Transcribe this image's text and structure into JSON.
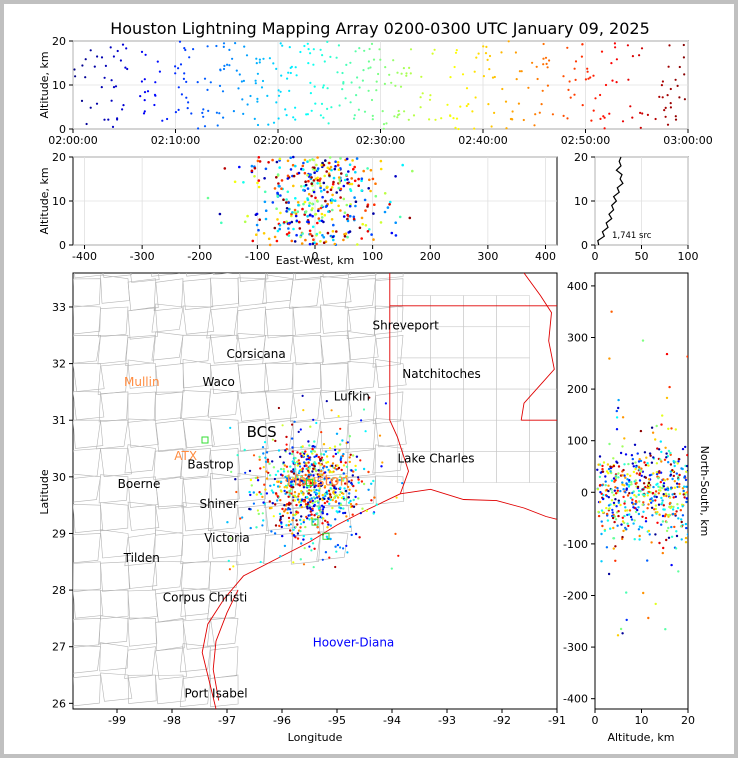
{
  "title": "Houston Lightning Mapping Array 0200-0300 UTC January 09, 2025",
  "source_count_label": "1,741 src",
  "chart_data": [
    {
      "panel": "time-altitude",
      "type": "scatter",
      "ylabel": "Altitude, km",
      "xlim": [
        "02:00:00",
        "03:00:00"
      ],
      "ylim": [
        0,
        20
      ],
      "x_ticks": [
        "02:00:00",
        "02:10:00",
        "02:20:00",
        "02:30:00",
        "02:40:00",
        "02:50:00",
        "03:00:00"
      ],
      "y_ticks": [
        0,
        10,
        20
      ],
      "color_encoding": "time (blue→red)",
      "grid": true,
      "density_profile": [
        {
          "minute_start": 0,
          "count": 55
        },
        {
          "minute_start": 10,
          "count": 80
        },
        {
          "minute_start": 20,
          "count": 90
        },
        {
          "minute_start": 30,
          "count": 60
        },
        {
          "minute_start": 40,
          "count": 60
        },
        {
          "minute_start": 50,
          "count": 60
        }
      ]
    },
    {
      "panel": "east-west-altitude",
      "type": "scatter",
      "xlabel": "East-West, km",
      "ylabel": "Altitude, km",
      "xlim": [
        -420,
        420
      ],
      "ylim": [
        0,
        20
      ],
      "x_ticks": [
        -400,
        -300,
        -200,
        -100,
        0,
        100,
        200,
        300,
        400
      ],
      "y_ticks": [
        0,
        10,
        20
      ],
      "cluster": {
        "center_x": 0,
        "spread_x": 55,
        "alt_range": [
          0,
          20
        ]
      },
      "grid": true
    },
    {
      "panel": "altitude-histogram",
      "type": "line",
      "xlim": [
        0,
        100
      ],
      "ylim": [
        0,
        20
      ],
      "x_ticks": [
        0,
        50,
        100
      ],
      "y_ticks": [
        0,
        10,
        20
      ],
      "profile": [
        {
          "alt": 0,
          "count": 2
        },
        {
          "alt": 1,
          "count": 5
        },
        {
          "alt": 2,
          "count": 8
        },
        {
          "alt": 3,
          "count": 10
        },
        {
          "alt": 4,
          "count": 12
        },
        {
          "alt": 5,
          "count": 14
        },
        {
          "alt": 6,
          "count": 16
        },
        {
          "alt": 7,
          "count": 17
        },
        {
          "alt": 8,
          "count": 18
        },
        {
          "alt": 9,
          "count": 20
        },
        {
          "alt": 10,
          "count": 21
        },
        {
          "alt": 11,
          "count": 22
        },
        {
          "alt": 12,
          "count": 24
        },
        {
          "alt": 13,
          "count": 26
        },
        {
          "alt": 14,
          "count": 28
        },
        {
          "alt": 15,
          "count": 29
        },
        {
          "alt": 16,
          "count": 27
        },
        {
          "alt": 17,
          "count": 25
        },
        {
          "alt": 18,
          "count": 26
        },
        {
          "alt": 19,
          "count": 28
        },
        {
          "alt": 20,
          "count": 26
        }
      ],
      "grid": true
    },
    {
      "panel": "plan-view-map",
      "type": "scatter",
      "xlabel": "Longitude",
      "ylabel": "Latitude",
      "xlim": [
        -99.8,
        -91
      ],
      "ylim": [
        25.9,
        33.6
      ],
      "x_ticks": [
        -99,
        -98,
        -97,
        -96,
        -95,
        -94,
        -93,
        -92,
        -91
      ],
      "y_ticks": [
        26,
        27,
        28,
        29,
        30,
        31,
        32,
        33
      ],
      "cluster": {
        "center_lon": -95.5,
        "center_lat": 29.8,
        "spread_lon": 0.45,
        "spread_lat": 0.4
      },
      "cities": [
        {
          "name": "Shreveport",
          "lon": -93.75,
          "lat": 32.6,
          "color": "#000000"
        },
        {
          "name": "Corsicana",
          "lon": -96.47,
          "lat": 32.1,
          "color": "#000000"
        },
        {
          "name": "Natchitoches",
          "lon": -93.1,
          "lat": 31.75,
          "color": "#000000"
        },
        {
          "name": "Mullin",
          "lon": -98.55,
          "lat": 31.6,
          "color": "#ff8c40"
        },
        {
          "name": "Waco",
          "lon": -97.15,
          "lat": 31.6,
          "color": "#000000"
        },
        {
          "name": "Lufkin",
          "lon": -94.73,
          "lat": 31.35,
          "color": "#000000"
        },
        {
          "name": "BCS",
          "lon": -96.37,
          "lat": 30.7,
          "color": "#000000"
        },
        {
          "name": "ATX",
          "lon": -97.75,
          "lat": 30.3,
          "color": "#ff8c40"
        },
        {
          "name": "Bastrop",
          "lon": -97.3,
          "lat": 30.15,
          "color": "#000000"
        },
        {
          "name": "Lake Charles",
          "lon": -93.2,
          "lat": 30.25,
          "color": "#000000"
        },
        {
          "name": "Houston",
          "lon": -95.35,
          "lat": 29.85,
          "color": "#ff8c40"
        },
        {
          "name": "Boerne",
          "lon": -98.6,
          "lat": 29.8,
          "color": "#000000"
        },
        {
          "name": "Shiner",
          "lon": -97.15,
          "lat": 29.45,
          "color": "#000000"
        },
        {
          "name": "Victoria",
          "lon": -97.0,
          "lat": 28.85,
          "color": "#000000"
        },
        {
          "name": "Tilden",
          "lon": -98.55,
          "lat": 28.5,
          "color": "#000000"
        },
        {
          "name": "Corpus Christi",
          "lon": -97.4,
          "lat": 27.8,
          "color": "#000000"
        },
        {
          "name": "Hoover-Diana",
          "lon": -94.7,
          "lat": 27.0,
          "color": "#0000ff"
        },
        {
          "name": "Port Isabel",
          "lon": -97.2,
          "lat": 26.1,
          "color": "#000000"
        }
      ]
    },
    {
      "panel": "altitude-north-south",
      "type": "scatter",
      "xlabel": "Altitude, km",
      "ylabel": "North-South, km",
      "xlim": [
        0,
        20
      ],
      "ylim": [
        -420,
        425
      ],
      "x_ticks": [
        0,
        10,
        20
      ],
      "y_ticks": [
        -400,
        -300,
        -200,
        -100,
        0,
        100,
        200,
        300,
        400
      ],
      "cluster": {
        "center_y": 0,
        "spread_y": 50
      }
    }
  ]
}
